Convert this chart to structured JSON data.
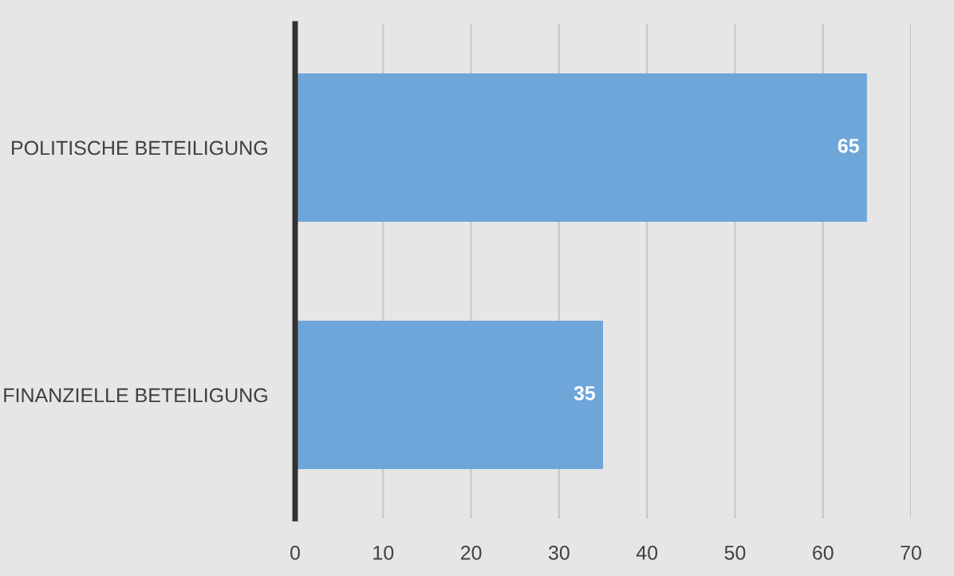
{
  "chart_data": {
    "type": "bar",
    "orientation": "horizontal",
    "categories": [
      "POLITISCHE BETEILIGUNG",
      "FINANZIELLE BETEILIGUNG"
    ],
    "values": [
      65,
      35
    ],
    "color": "#6fa6da",
    "xlim": [
      0,
      70
    ],
    "xticks": [
      0,
      10,
      20,
      30,
      40,
      50,
      60,
      70
    ],
    "grid": "x",
    "data_labels": true
  }
}
